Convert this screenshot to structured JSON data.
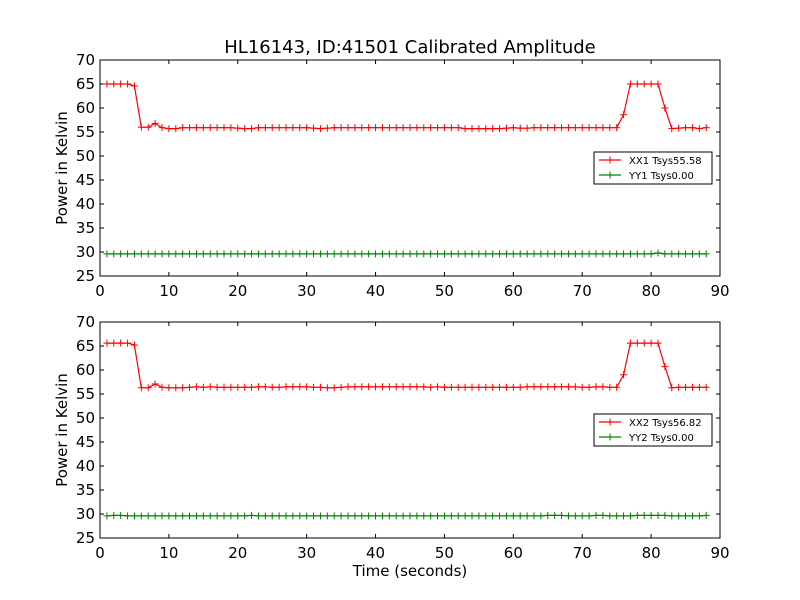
{
  "figure": {
    "title": "HL16143, ID:41501 Calibrated Amplitude"
  },
  "chart_data": [
    {
      "type": "line",
      "title": "HL16143, ID:41501 Calibrated Amplitude",
      "xlabel": "",
      "ylabel": "Power in Kelvin",
      "xlim": [
        0,
        90
      ],
      "ylim": [
        25,
        70
      ],
      "xticks": [
        "0",
        "10",
        "20",
        "30",
        "40",
        "50",
        "60",
        "70",
        "80",
        "90"
      ],
      "yticks": [
        "25",
        "30",
        "35",
        "40",
        "45",
        "50",
        "55",
        "60",
        "65",
        "70"
      ],
      "grid": false,
      "legend_position": "center-right",
      "marker": "+",
      "x": [
        1,
        2,
        3,
        4,
        5,
        6,
        7,
        8,
        9,
        10,
        11,
        12,
        13,
        14,
        15,
        16,
        17,
        18,
        19,
        20,
        21,
        22,
        23,
        24,
        25,
        26,
        27,
        28,
        29,
        30,
        31,
        32,
        33,
        34,
        35,
        36,
        37,
        38,
        39,
        40,
        41,
        42,
        43,
        44,
        45,
        46,
        47,
        48,
        49,
        50,
        51,
        52,
        53,
        54,
        55,
        56,
        57,
        58,
        59,
        60,
        61,
        62,
        63,
        64,
        65,
        66,
        67,
        68,
        69,
        70,
        71,
        72,
        73,
        74,
        75,
        76,
        77,
        78,
        79,
        80,
        81,
        82,
        83,
        84,
        85,
        86,
        87,
        88
      ],
      "series": [
        {
          "name": "XX1 Tsys55.58",
          "color": "#ff0000",
          "values": [
            65,
            65,
            65,
            65,
            64.6,
            56,
            56,
            56.8,
            55.9,
            55.7,
            55.7,
            55.9,
            55.9,
            55.9,
            55.9,
            55.9,
            55.9,
            55.9,
            55.9,
            55.8,
            55.7,
            55.7,
            55.9,
            55.9,
            55.9,
            55.9,
            55.9,
            55.9,
            55.9,
            55.9,
            55.8,
            55.7,
            55.8,
            55.9,
            55.9,
            55.9,
            55.9,
            55.9,
            55.9,
            55.9,
            55.9,
            55.9,
            55.9,
            55.9,
            55.9,
            55.9,
            55.9,
            55.9,
            55.9,
            55.9,
            55.9,
            55.9,
            55.7,
            55.7,
            55.7,
            55.7,
            55.7,
            55.7,
            55.8,
            55.9,
            55.8,
            55.8,
            55.9,
            55.9,
            55.9,
            55.9,
            55.9,
            55.9,
            55.9,
            55.9,
            55.9,
            55.9,
            55.9,
            55.9,
            55.9,
            58.6,
            65,
            65,
            65,
            65,
            65,
            60,
            55.7,
            55.8,
            55.9,
            55.9,
            55.7,
            55.9
          ]
        },
        {
          "name": "YY1 Tsys0.00",
          "color": "#008000",
          "values": [
            29.6,
            29.6,
            29.6,
            29.6,
            29.6,
            29.6,
            29.6,
            29.6,
            29.6,
            29.6,
            29.6,
            29.6,
            29.6,
            29.6,
            29.6,
            29.6,
            29.6,
            29.6,
            29.6,
            29.6,
            29.6,
            29.6,
            29.6,
            29.6,
            29.6,
            29.6,
            29.6,
            29.6,
            29.6,
            29.6,
            29.6,
            29.6,
            29.6,
            29.6,
            29.6,
            29.6,
            29.6,
            29.6,
            29.6,
            29.6,
            29.6,
            29.6,
            29.6,
            29.6,
            29.6,
            29.6,
            29.6,
            29.6,
            29.6,
            29.6,
            29.6,
            29.6,
            29.6,
            29.6,
            29.6,
            29.6,
            29.6,
            29.6,
            29.6,
            29.6,
            29.6,
            29.6,
            29.6,
            29.6,
            29.6,
            29.6,
            29.6,
            29.6,
            29.6,
            29.6,
            29.6,
            29.6,
            29.6,
            29.6,
            29.6,
            29.6,
            29.6,
            29.6,
            29.6,
            29.6,
            29.8,
            29.6,
            29.6,
            29.6,
            29.6,
            29.6,
            29.6,
            29.6
          ]
        }
      ]
    },
    {
      "type": "line",
      "title": "",
      "xlabel": "Time (seconds)",
      "ylabel": "Power in Kelvin",
      "xlim": [
        0,
        90
      ],
      "ylim": [
        25,
        70
      ],
      "xticks": [
        "0",
        "10",
        "20",
        "30",
        "40",
        "50",
        "60",
        "70",
        "80",
        "90"
      ],
      "yticks": [
        "25",
        "30",
        "35",
        "40",
        "45",
        "50",
        "55",
        "60",
        "65",
        "70"
      ],
      "grid": false,
      "legend_position": "center-right",
      "marker": "+",
      "x": [
        1,
        2,
        3,
        4,
        5,
        6,
        7,
        8,
        9,
        10,
        11,
        12,
        13,
        14,
        15,
        16,
        17,
        18,
        19,
        20,
        21,
        22,
        23,
        24,
        25,
        26,
        27,
        28,
        29,
        30,
        31,
        32,
        33,
        34,
        35,
        36,
        37,
        38,
        39,
        40,
        41,
        42,
        43,
        44,
        45,
        46,
        47,
        48,
        49,
        50,
        51,
        52,
        53,
        54,
        55,
        56,
        57,
        58,
        59,
        60,
        61,
        62,
        63,
        64,
        65,
        66,
        67,
        68,
        69,
        70,
        71,
        72,
        73,
        74,
        75,
        76,
        77,
        78,
        79,
        80,
        81,
        82,
        83,
        84,
        85,
        86,
        87,
        88
      ],
      "series": [
        {
          "name": "XX2 Tsys56.82",
          "color": "#ff0000",
          "values": [
            65.6,
            65.6,
            65.6,
            65.6,
            65.2,
            56.3,
            56.3,
            57.1,
            56.4,
            56.3,
            56.3,
            56.3,
            56.4,
            56.5,
            56.4,
            56.5,
            56.4,
            56.4,
            56.4,
            56.4,
            56.4,
            56.4,
            56.5,
            56.5,
            56.4,
            56.4,
            56.5,
            56.5,
            56.5,
            56.5,
            56.4,
            56.4,
            56.3,
            56.3,
            56.4,
            56.5,
            56.5,
            56.5,
            56.5,
            56.5,
            56.5,
            56.5,
            56.5,
            56.5,
            56.5,
            56.5,
            56.5,
            56.4,
            56.5,
            56.4,
            56.4,
            56.4,
            56.4,
            56.4,
            56.4,
            56.4,
            56.4,
            56.4,
            56.4,
            56.4,
            56.4,
            56.5,
            56.5,
            56.5,
            56.5,
            56.5,
            56.5,
            56.5,
            56.5,
            56.4,
            56.4,
            56.5,
            56.5,
            56.4,
            56.4,
            59,
            65.6,
            65.6,
            65.6,
            65.6,
            65.6,
            60.7,
            56.3,
            56.4,
            56.4,
            56.4,
            56.4,
            56.4
          ]
        },
        {
          "name": "YY2 Tsys0.00",
          "color": "#008000",
          "values": [
            29.6,
            29.7,
            29.7,
            29.6,
            29.6,
            29.6,
            29.6,
            29.6,
            29.6,
            29.6,
            29.6,
            29.6,
            29.6,
            29.6,
            29.6,
            29.6,
            29.6,
            29.6,
            29.6,
            29.6,
            29.6,
            29.7,
            29.6,
            29.6,
            29.6,
            29.6,
            29.6,
            29.6,
            29.6,
            29.6,
            29.6,
            29.6,
            29.6,
            29.6,
            29.6,
            29.6,
            29.6,
            29.6,
            29.6,
            29.6,
            29.6,
            29.6,
            29.6,
            29.6,
            29.6,
            29.6,
            29.6,
            29.6,
            29.6,
            29.6,
            29.6,
            29.6,
            29.6,
            29.6,
            29.6,
            29.6,
            29.6,
            29.6,
            29.6,
            29.6,
            29.6,
            29.6,
            29.6,
            29.6,
            29.7,
            29.7,
            29.7,
            29.6,
            29.6,
            29.6,
            29.6,
            29.7,
            29.7,
            29.6,
            29.6,
            29.6,
            29.6,
            29.7,
            29.7,
            29.7,
            29.7,
            29.7,
            29.6,
            29.6,
            29.6,
            29.6,
            29.6,
            29.7
          ]
        }
      ]
    }
  ]
}
